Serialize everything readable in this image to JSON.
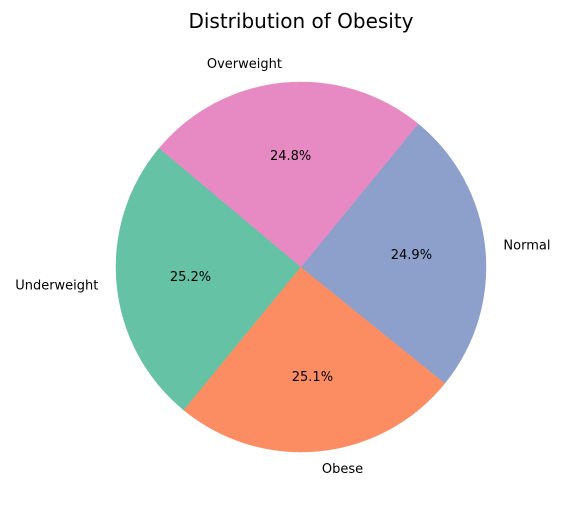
{
  "chart_data": {
    "type": "pie",
    "title": "Distribution of Obesity",
    "start_angle_deg": 140,
    "direction": "counterclockwise",
    "slices": [
      {
        "label": "Underweight",
        "value": 25.2,
        "pct_label": "25.2%",
        "color": "#66c2a5"
      },
      {
        "label": "Obese",
        "value": 25.1,
        "pct_label": "25.1%",
        "color": "#fc8d62"
      },
      {
        "label": "Normal",
        "value": 24.9,
        "pct_label": "24.9%",
        "color": "#8da0cb"
      },
      {
        "label": "Overweight",
        "value": 24.8,
        "pct_label": "24.8%",
        "color": "#e78ac3"
      }
    ]
  }
}
